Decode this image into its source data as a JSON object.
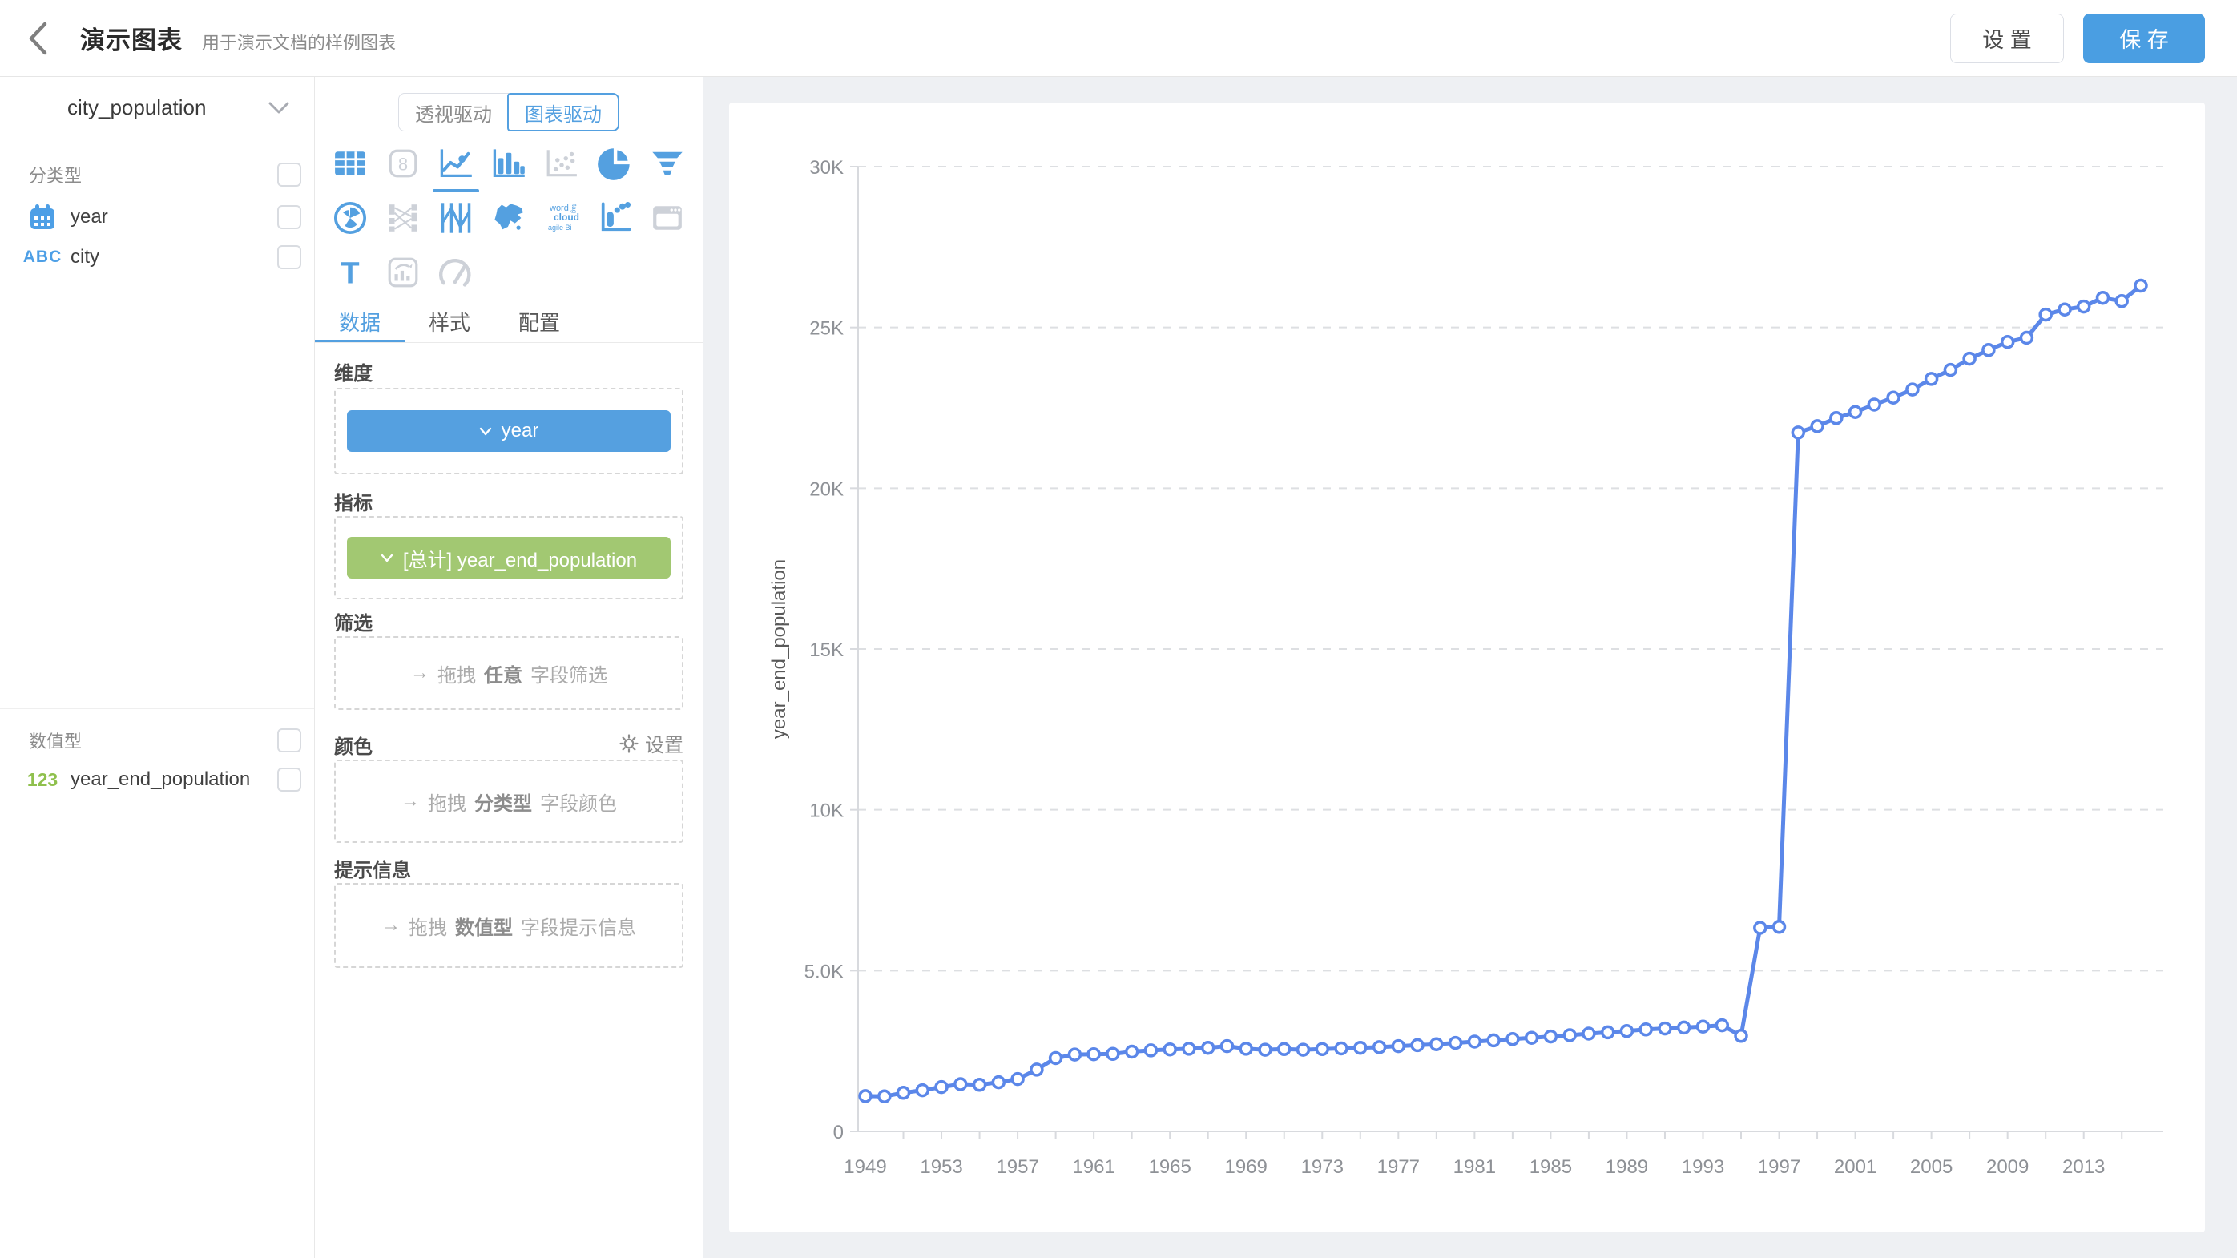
{
  "header": {
    "title": "演示图表",
    "subtitle": "用于演示文档的样例图表",
    "settings_label": "设 置",
    "save_label": "保 存"
  },
  "sidebar": {
    "dataset_name": "city_population",
    "categorical": {
      "label": "分类型",
      "fields": [
        {
          "name": "year",
          "icon": "calendar-icon"
        },
        {
          "name": "city",
          "badge": "ABC"
        }
      ]
    },
    "numeric": {
      "label": "数值型",
      "fields": [
        {
          "name": "year_end_population",
          "badge": "123"
        }
      ]
    }
  },
  "builder": {
    "mode_toggle": {
      "options": [
        "透视驱动",
        "图表驱动"
      ],
      "active": "图表驱动"
    },
    "chart_types": [
      {
        "name": "table",
        "state": "enabled"
      },
      {
        "name": "kpi-card",
        "state": "disabled"
      },
      {
        "name": "line",
        "state": "active"
      },
      {
        "name": "bar",
        "state": "enabled"
      },
      {
        "name": "scatter",
        "state": "disabled"
      },
      {
        "name": "pie",
        "state": "enabled"
      },
      {
        "name": "funnel",
        "state": "enabled"
      },
      {
        "name": "rose-radar",
        "state": "enabled"
      },
      {
        "name": "sankey",
        "state": "disabled"
      },
      {
        "name": "parallel",
        "state": "enabled"
      },
      {
        "name": "china-map",
        "state": "enabled"
      },
      {
        "name": "word-cloud",
        "state": "enabled"
      },
      {
        "name": "bullet",
        "state": "enabled"
      },
      {
        "name": "web-frame",
        "state": "disabled"
      },
      {
        "name": "text",
        "state": "enabled"
      },
      {
        "name": "combo",
        "state": "disabled"
      },
      {
        "name": "gauge",
        "state": "disabled"
      }
    ],
    "tabs": {
      "items": [
        "数据",
        "样式",
        "配置"
      ],
      "active": "数据"
    },
    "sections": {
      "dimension": {
        "label": "维度",
        "chip": "year"
      },
      "metric": {
        "label": "指标",
        "chip": "[总计] year_end_population"
      },
      "filter": {
        "label": "筛选",
        "placeholder": {
          "arrow": "→",
          "prefix": "拖拽",
          "bold": "任意",
          "suffix": "字段筛选"
        }
      },
      "color": {
        "label": "颜色",
        "action": "设置",
        "placeholder": {
          "arrow": "→",
          "prefix": "拖拽",
          "bold": "分类型",
          "suffix": "字段颜色"
        }
      },
      "tooltip": {
        "label": "提示信息",
        "placeholder": {
          "arrow": "→",
          "prefix": "拖拽",
          "bold": "数值型",
          "suffix": "字段提示信息"
        }
      }
    }
  },
  "colors": {
    "accent_blue": "#54A0E0",
    "save_button": "#4A9EE2",
    "chip_blue": "#55A0E0",
    "chip_green": "#A2C872",
    "line_blue": "#5B87E9",
    "page_background": "#EEF0F3"
  },
  "chart_data": {
    "type": "line",
    "title": "",
    "ylabel": "year_end_population",
    "unit": "K",
    "ylim": [
      0,
      30
    ],
    "grid": "horizontal-dashed",
    "legend": "none",
    "line_color": "#5B87E9",
    "marker": {
      "fill": "#FFFFFF",
      "radius": 7
    },
    "x": [
      1949,
      1950,
      1951,
      1952,
      1953,
      1954,
      1955,
      1956,
      1957,
      1958,
      1959,
      1960,
      1961,
      1962,
      1963,
      1964,
      1965,
      1966,
      1967,
      1968,
      1969,
      1970,
      1971,
      1972,
      1973,
      1974,
      1975,
      1976,
      1977,
      1978,
      1979,
      1980,
      1981,
      1982,
      1983,
      1984,
      1985,
      1986,
      1987,
      1988,
      1989,
      1990,
      1991,
      1992,
      1993,
      1994,
      1995,
      1996,
      1997,
      1998,
      1999,
      2000,
      2001,
      2002,
      2003,
      2004,
      2005,
      2006,
      2007,
      2008,
      2009,
      2010,
      2011,
      2012,
      2013,
      2014,
      2015,
      2016
    ],
    "series": [
      {
        "name": "year_end_population",
        "values": [
          1.1,
          1.09,
          1.2,
          1.28,
          1.38,
          1.47,
          1.45,
          1.53,
          1.63,
          1.92,
          2.28,
          2.39,
          2.4,
          2.41,
          2.48,
          2.52,
          2.55,
          2.57,
          2.6,
          2.65,
          2.57,
          2.54,
          2.56,
          2.54,
          2.56,
          2.58,
          2.6,
          2.62,
          2.65,
          2.68,
          2.71,
          2.75,
          2.79,
          2.83,
          2.87,
          2.91,
          2.95,
          2.99,
          3.04,
          3.08,
          3.12,
          3.17,
          3.2,
          3.23,
          3.26,
          3.3,
          2.97,
          6.33,
          6.36,
          21.73,
          21.93,
          22.18,
          22.37,
          22.6,
          22.82,
          23.07,
          23.4,
          23.68,
          24.03,
          24.3,
          24.55,
          24.68,
          25.4,
          25.56,
          25.65,
          25.92,
          25.82,
          26.3
        ]
      }
    ],
    "y_ticks": [
      {
        "value": 0,
        "label": "0"
      },
      {
        "value": 5,
        "label": "5.0K"
      },
      {
        "value": 10,
        "label": "10K"
      },
      {
        "value": 15,
        "label": "15K"
      },
      {
        "value": 20,
        "label": "20K"
      },
      {
        "value": 25,
        "label": "25K"
      },
      {
        "value": 30,
        "label": "30K"
      }
    ],
    "x_tick_labels": [
      1949,
      1953,
      1957,
      1961,
      1965,
      1969,
      1973,
      1977,
      1981,
      1985,
      1989,
      1993,
      1997,
      2001,
      2005,
      2009,
      2013
    ],
    "x_minor_ticks": {
      "start": 1951,
      "end": 2015,
      "step": 2
    }
  }
}
